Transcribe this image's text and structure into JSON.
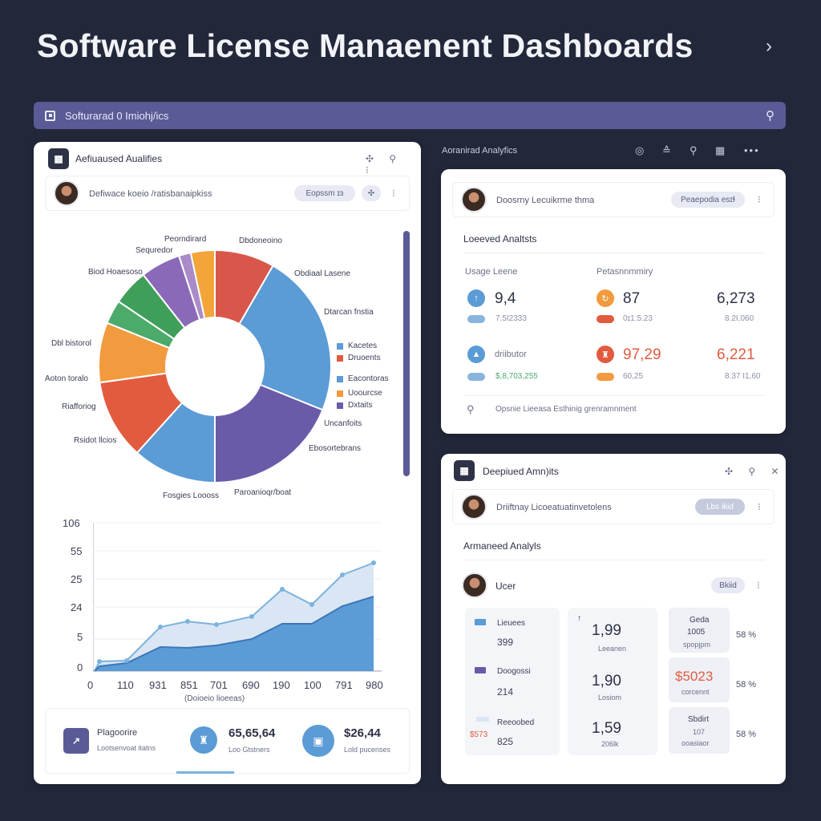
{
  "header": {
    "title": "Software License Manaenent Dashboards",
    "chevron": "›"
  },
  "searchbar": {
    "text": "Softurarad 0 Imiohj/ics",
    "icon": "search-icon"
  },
  "left_card": {
    "title": "Aefiuaused Aualifies",
    "header_icons": "✣ ⚲ ⁝",
    "row": {
      "text": "Defiwace koeio /ratisbanaipkiss",
      "pill": "Eopssm ɪɜ",
      "icon": "✣",
      "dots": "⁝"
    },
    "pie": {
      "labels": [
        "Peorndirard",
        "Sequredor",
        "Dbdoneoino",
        "Biod Hoaesoso",
        "Obdiaal Lasene",
        "Dtarcan fnstia",
        "Dbl bistorol",
        "Aoton toralo",
        "Riafforiog",
        "Rsidot llcios",
        "Fosgies Loooss",
        "Paroanioqr/boat",
        "Ebosortebrans",
        "Uncanfoits"
      ],
      "legend": [
        "Kacetes",
        "Druoents",
        "Eacontoras",
        "Uoourcse",
        "Dxtaits"
      ],
      "colors": [
        "#d9574a",
        "#5b9bd6",
        "#6b5aa8",
        "#5b9bd6",
        "#e25b3f",
        "#f29a3e",
        "#4caa6a",
        "#3f9e5a",
        "#8a6ab8",
        "#a98bc8",
        "#f3a53a"
      ]
    },
    "area_chart": {
      "y_ticks": [
        "106",
        "55",
        "25",
        "24",
        "5",
        "0"
      ],
      "x_ticks": [
        "0",
        "110",
        "931",
        "851",
        "701",
        "690",
        "190",
        "100",
        "791",
        "980"
      ],
      "x_title": "(Doioeio lioeeas)"
    },
    "footer": {
      "item1": {
        "title": "Plagoorire",
        "sub": "Lootsenvoat itatns"
      },
      "item2": {
        "value": "65,65,64",
        "sub": "Loo Gtstners"
      },
      "item3": {
        "value": "$26,44",
        "sub": "Lold pucenses"
      }
    }
  },
  "top_right_label": "Aoranirad Analyfics",
  "top_right_icons": [
    "◎",
    "≙",
    "⚲",
    "▦",
    "•••"
  ],
  "card_tr": {
    "row": {
      "text": "Doosrny Lecuikrme thma",
      "pill": "Peaepodia esɪɬ",
      "dots": "⁝"
    },
    "heading": "Loeeved Analtsts",
    "usage_label": "Usage Leene",
    "perf_label": "Petasnnmmiry",
    "stats": [
      {
        "value": "9,4",
        "sub": "7.5I2333"
      },
      {
        "value": "87",
        "sub": "0ɪ1.5.23"
      },
      {
        "value": "6,273",
        "sub": "8.2I,060"
      },
      {
        "value": "driibutor",
        "sub": "$,8,703,255"
      },
      {
        "value": "97,29",
        "sub": "60,25"
      },
      {
        "value": "6,221",
        "sub": "8.37 I1,60"
      }
    ],
    "footer": "Opsnie Lieeasa Esthinig grenramnment"
  },
  "card_br": {
    "title": "Deepiued Amn)its",
    "header_icons": "✣ ⚲ ✕",
    "row": {
      "text": "Driiftnay Licoeatuatinvetolens",
      "pill": "Lbs ikid",
      "dots": "⁝"
    },
    "heading": "Armaneed Analyls",
    "user_row": {
      "text": "Ucer",
      "pill": "Bkiid",
      "dots": "⁝"
    },
    "tiles": [
      {
        "label": "Lieuees",
        "num": "399",
        "big": "1,99",
        "sub": "Leeanen",
        "top": "Geda",
        "topnum": "1005",
        "topsub": "spopjpm",
        "pct": "58 %"
      },
      {
        "label": "Doogossi",
        "num": "214",
        "big": "1,90",
        "sub": "Losiom",
        "top": "$5023",
        "topsub": "corcennt",
        "pct": "58 %"
      },
      {
        "label": "Reeoobed",
        "num": "825",
        "side": "$573",
        "big": "1,59",
        "sub": "206lk",
        "top": "Sbdirt",
        "topnum": "107",
        "topsub": "ooasiaor",
        "pct": "58 %"
      }
    ]
  }
}
